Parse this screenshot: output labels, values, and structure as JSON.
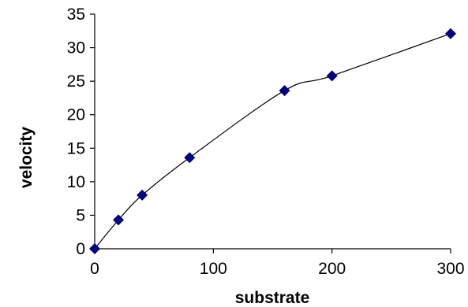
{
  "chart_data": {
    "type": "scatter",
    "xlabel": "substrate",
    "ylabel": "velocity",
    "xlim": [
      0,
      300
    ],
    "ylim": [
      0,
      35
    ],
    "x_ticks": [
      0,
      100,
      200,
      300
    ],
    "y_ticks": [
      0,
      5,
      10,
      15,
      20,
      25,
      30,
      35
    ],
    "grid": false,
    "series": [
      {
        "marker": "diamond",
        "color": "#000080",
        "points": [
          {
            "x": 0,
            "y": 0
          },
          {
            "x": 20,
            "y": 4.3
          },
          {
            "x": 40,
            "y": 8.0
          },
          {
            "x": 80,
            "y": 13.6
          },
          {
            "x": 160,
            "y": 23.6
          },
          {
            "x": 200,
            "y": 25.8
          },
          {
            "x": 300,
            "y": 32.1
          }
        ]
      }
    ],
    "fit_curve": {
      "type": "smooth",
      "color": "#000000",
      "points": [
        {
          "x": 0,
          "y": 0
        },
        {
          "x": 20,
          "y": 4.3
        },
        {
          "x": 40,
          "y": 8.0
        },
        {
          "x": 80,
          "y": 13.6
        },
        {
          "x": 160,
          "y": 23.6
        },
        {
          "x": 200,
          "y": 25.8
        },
        {
          "x": 300,
          "y": 32.1
        }
      ]
    }
  }
}
